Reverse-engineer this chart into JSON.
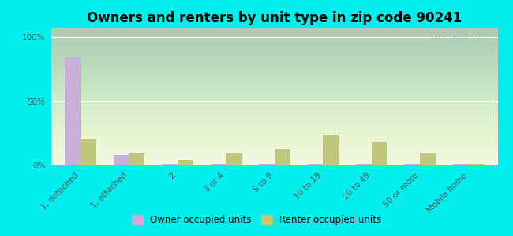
{
  "title": "Owners and renters by unit type in zip code 90241",
  "categories": [
    "1, detached",
    "1, attached",
    "2",
    "3 or 4",
    "5 to 9",
    "10 to 19",
    "20 to 49",
    "50 or more",
    "Mobile home"
  ],
  "owner_values": [
    85,
    8,
    0.5,
    0.5,
    0.5,
    0.5,
    1,
    1.5,
    0.5
  ],
  "renter_values": [
    20,
    9,
    4,
    9,
    13,
    24,
    18,
    10,
    1
  ],
  "owner_color": "#c9afd8",
  "renter_color": "#bfc87a",
  "outer_bg": "#00eeee",
  "plot_bg_color": "#eaf5e0",
  "title_fontsize": 12,
  "tick_label_fontsize": 7.5,
  "legend_fontsize": 8.5,
  "ytick_labels": [
    "0%",
    "50%",
    "100%"
  ],
  "ytick_values": [
    0,
    50,
    100
  ],
  "ylim": [
    0,
    107
  ],
  "bar_width": 0.32,
  "watermark": "City-Data.com"
}
